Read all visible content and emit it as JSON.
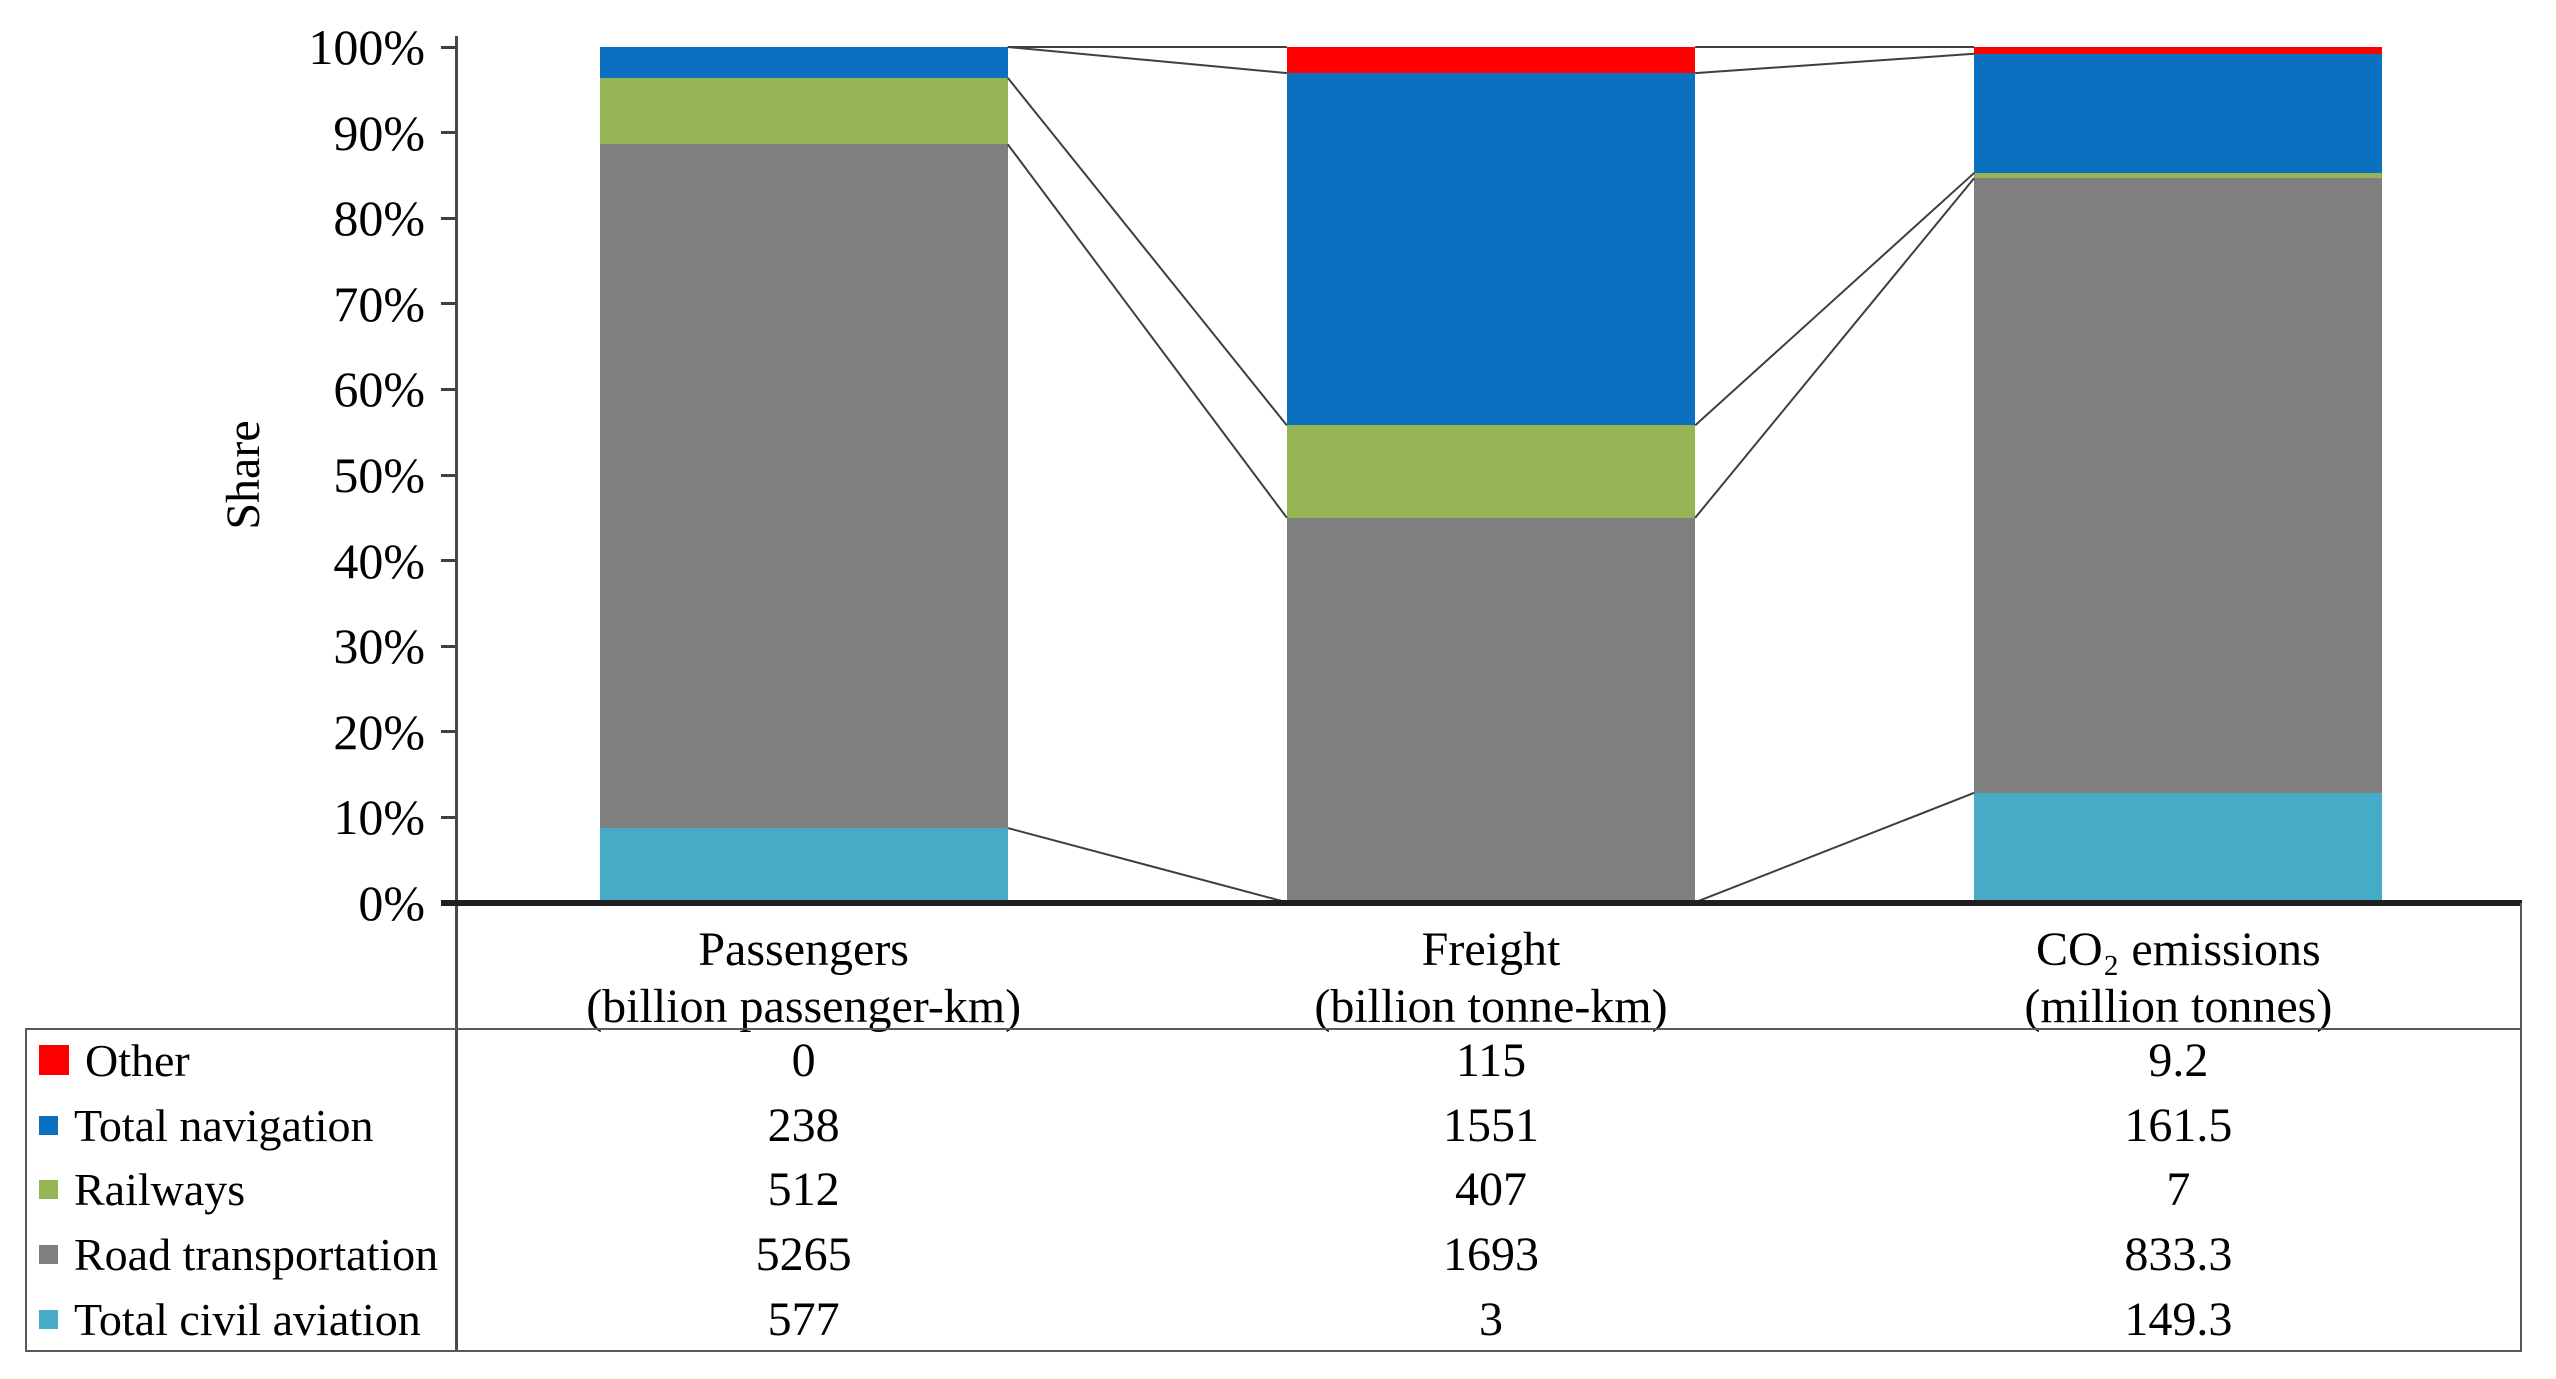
{
  "chart_data": {
    "type": "bar",
    "variant": "100%-stacked-column-with-data-table",
    "title": "",
    "ylabel": "Share",
    "y_axis": {
      "unit": "%",
      "min": 0,
      "max": 100,
      "tick_step": 10,
      "ticks": [
        "0%",
        "10%",
        "20%",
        "30%",
        "40%",
        "50%",
        "60%",
        "70%",
        "80%",
        "90%",
        "100%"
      ],
      "grid": false
    },
    "categories": [
      {
        "line1": "Passengers",
        "line2": "(billion passenger-km)"
      },
      {
        "line1": "Freight",
        "line2": "(billion tonne-km)"
      },
      {
        "line1": "CO₂ emissions",
        "line2": "(million tonnes)"
      }
    ],
    "series": [
      {
        "name": "Other",
        "color": "#FE0000",
        "values": [
          0,
          115,
          9.2
        ]
      },
      {
        "name": "Total navigation",
        "color": "#0B70C0",
        "values": [
          238,
          1551,
          161.5
        ]
      },
      {
        "name": "Railways",
        "color": "#95B554",
        "values": [
          512,
          407,
          7
        ]
      },
      {
        "name": "Road transportation",
        "color": "#7F7F7F",
        "values": [
          5265,
          1693,
          833.3
        ]
      },
      {
        "name": "Total civil aviation",
        "color": "#45ABC7",
        "values": [
          577,
          3,
          149.3
        ]
      }
    ],
    "stack_order_bottom_to_top": [
      "Total civil aviation",
      "Road transportation",
      "Railways",
      "Total navigation",
      "Other"
    ],
    "legend_position": "table-left-column",
    "series_connector_lines": true,
    "connector_line_color": "#3F3F3F",
    "table_border_color": "#595959"
  }
}
